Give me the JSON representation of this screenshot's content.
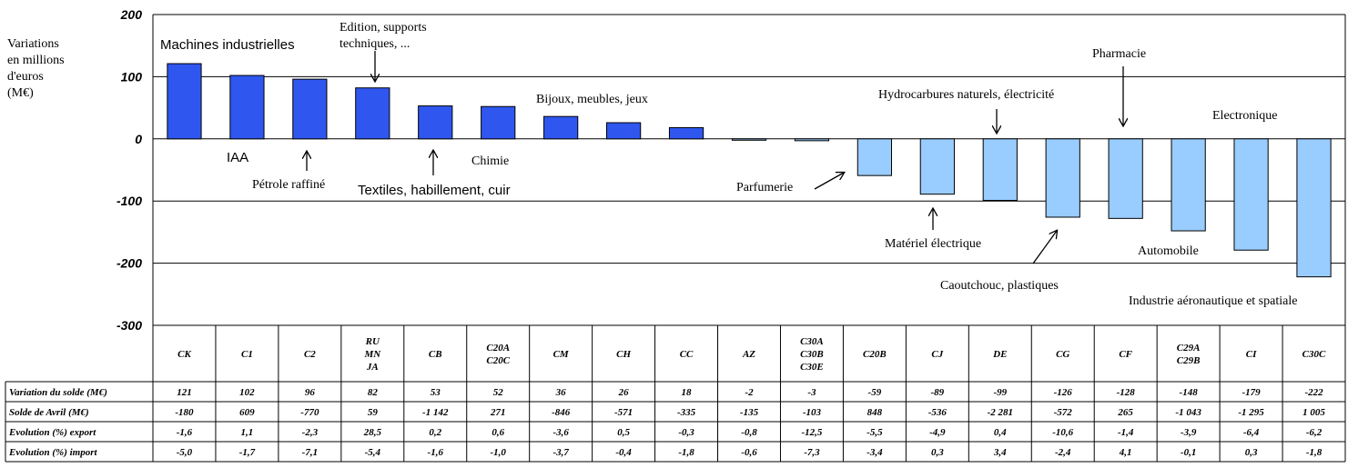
{
  "chart_data": {
    "type": "bar",
    "ylabel": [
      "Variations",
      "en millions",
      "d'euros",
      "(M€)"
    ],
    "ylim": [
      -300,
      200
    ],
    "yticks": [
      "200",
      "100",
      "0",
      "-100",
      "-200",
      "-300"
    ],
    "grid": true,
    "categories": [
      [
        "CK"
      ],
      [
        "C1"
      ],
      [
        "C2"
      ],
      [
        "RU",
        "MN",
        "JA"
      ],
      [
        "CB"
      ],
      [
        "C20A",
        "C20C"
      ],
      [
        "CM"
      ],
      [
        "CH"
      ],
      [
        "CC"
      ],
      [
        "AZ"
      ],
      [
        "C30A",
        "C30B",
        "C30E"
      ],
      [
        "C20B"
      ],
      [
        "CJ"
      ],
      [
        "DE"
      ],
      [
        "CG"
      ],
      [
        "CF"
      ],
      [
        "C29A",
        "C29B"
      ],
      [
        "CI"
      ],
      [
        "C30C"
      ]
    ],
    "values": [
      121,
      102,
      96,
      82,
      53,
      52,
      36,
      26,
      18,
      -2,
      -3,
      -59,
      -89,
      -99,
      -126,
      -128,
      -148,
      -179,
      -222
    ],
    "colors": {
      "positive": "#2f57ef",
      "negative": "#99ccff"
    },
    "annotations": [
      "Machines industrielles",
      "IAA",
      [
        "Edition, supports",
        "techniques, ..."
      ],
      "Pétrole raffiné",
      "Textiles, habillement, cuir",
      "Chimie",
      "Bijoux, meubles, jeux",
      "Parfumerie",
      "Hydrocarbures naturels, électricité",
      "Matériel électrique",
      "Pharmacie",
      "Caoutchouc, plastiques",
      "Automobile",
      "Electronique",
      "Industrie aéronautique et spatiale"
    ],
    "table": {
      "rows": [
        {
          "label": "Variation du solde (M€)",
          "cells": [
            "121",
            "102",
            "96",
            "82",
            "53",
            "52",
            "36",
            "26",
            "18",
            "-2",
            "-3",
            "-59",
            "-89",
            "-99",
            "-126",
            "-128",
            "-148",
            "-179",
            "-222"
          ]
        },
        {
          "label": "Solde de Avril (M€)",
          "cells": [
            "-180",
            "609",
            "-770",
            "59",
            "-1 142",
            "271",
            "-846",
            "-571",
            "-335",
            "-135",
            "-103",
            "848",
            "-536",
            "-2 281",
            "-572",
            "265",
            "-1 043",
            "-1 295",
            "1 005"
          ]
        },
        {
          "label": "Evolution (%) export",
          "cells": [
            "-1,6",
            "1,1",
            "-2,3",
            "28,5",
            "0,2",
            "0,6",
            "-3,6",
            "0,5",
            "-0,3",
            "-0,8",
            "-12,5",
            "-5,5",
            "-4,9",
            "0,4",
            "-10,6",
            "-1,4",
            "-3,9",
            "-6,4",
            "-6,2"
          ]
        },
        {
          "label": "Evolution (%) import",
          "cells": [
            "-5,0",
            "-1,7",
            "-7,1",
            "-5,4",
            "-1,6",
            "-1,0",
            "-3,7",
            "-0,4",
            "-1,8",
            "-0,6",
            "-7,3",
            "-3,4",
            "0,3",
            "3,4",
            "-2,4",
            "4,1",
            "-0,1",
            "0,3",
            "-1,8"
          ]
        }
      ]
    }
  }
}
